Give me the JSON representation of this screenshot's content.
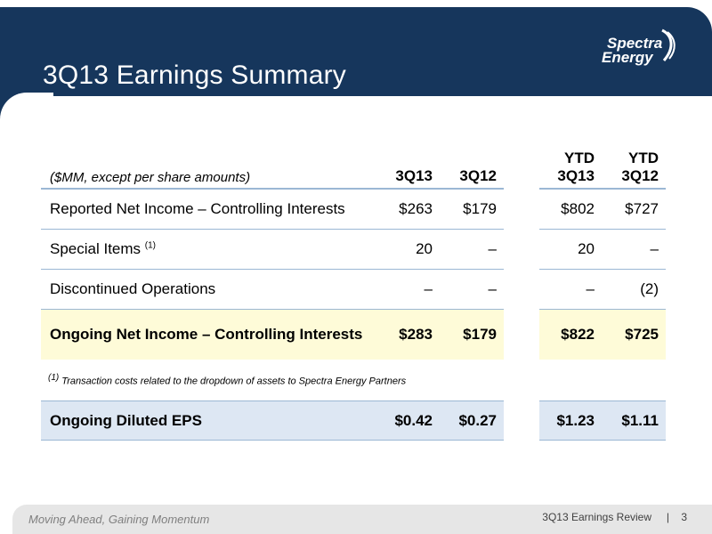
{
  "slide": {
    "title": "3Q13 Earnings Summary",
    "logo": {
      "line1": "Spectra",
      "line2": "Energy"
    }
  },
  "table": {
    "units_label": "($MM, except per share amounts)",
    "columns": {
      "q13": "3Q13",
      "q12": "3Q12",
      "ytd13_top": "YTD",
      "ytd13_bottom": "3Q13",
      "ytd12_top": "YTD",
      "ytd12_bottom": "3Q12"
    },
    "rows": [
      {
        "label": "Reported Net Income – Controlling Interests",
        "q13": "$263",
        "q12": "$179",
        "ytd13": "$802",
        "ytd12": "$727"
      },
      {
        "label": "Special Items",
        "note": "(1)",
        "q13": "20",
        "q12": "–",
        "ytd13": "20",
        "ytd12": "–"
      },
      {
        "label": "Discontinued Operations",
        "q13": "–",
        "q12": "–",
        "ytd13": "–",
        "ytd12": "(2)"
      },
      {
        "label": "Ongoing Net Income – Controlling Interests",
        "q13": "$283",
        "q12": "$179",
        "ytd13": "$822",
        "ytd12": "$725"
      }
    ],
    "footnote_marker": "(1)",
    "footnote_text": "Transaction costs related to the dropdown of assets to Spectra Energy Partners",
    "eps": {
      "label": "Ongoing Diluted EPS",
      "q13": "$0.42",
      "q12": "$0.27",
      "ytd13": "$1.23",
      "ytd12": "$1.11"
    }
  },
  "footer": {
    "tagline": "Moving Ahead, Gaining Momentum",
    "deck": "3Q13 Earnings Review",
    "separator": "|",
    "page": "3"
  }
}
